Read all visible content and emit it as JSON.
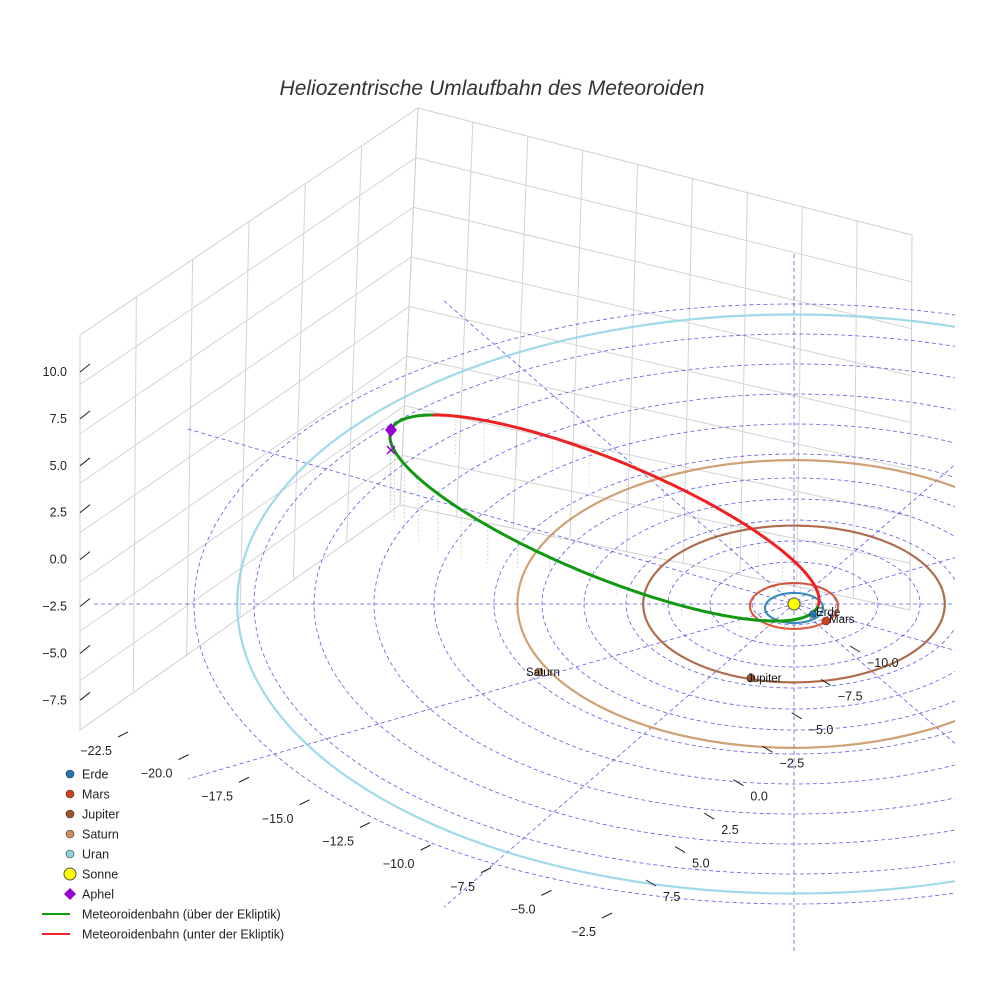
{
  "chart_data": {
    "type": "scatter",
    "title": "Heliozentrische Umlaufbahn des Meteoroiden",
    "z_ticks": [
      "10.0",
      "7.5",
      "5.0",
      "2.5",
      "0.0",
      "−2.5",
      "−5.0",
      "−7.5"
    ],
    "x_ticks": [
      "−22.5",
      "−20.0",
      "−17.5",
      "−15.0",
      "−12.5",
      "−10.0",
      "−7.5",
      "−5.0",
      "−2.5"
    ],
    "y_ticks": [
      "−10.0",
      "−7.5",
      "−5.0",
      "−2.5",
      "0.0",
      "2.5",
      "5.0",
      "7.5"
    ],
    "axis_ranges": {
      "x": [
        -23,
        0
      ],
      "y": [
        -11,
        8.5
      ],
      "z": [
        -8.5,
        11
      ]
    },
    "grid": true,
    "legend_placement": "bottom-left",
    "legend": [
      {
        "label": "Erde",
        "marker": "circle",
        "color": "#1f77b4"
      },
      {
        "label": "Mars",
        "marker": "circle",
        "color": "#d2421b"
      },
      {
        "label": "Jupiter",
        "marker": "circle",
        "color": "#a0522d"
      },
      {
        "label": "Saturn",
        "marker": "circle",
        "color": "#c8915c"
      },
      {
        "label": "Uran",
        "marker": "circle",
        "color": "#8ed3e6"
      },
      {
        "label": "Sonne",
        "marker": "big-circle",
        "color": "#ffff00"
      },
      {
        "label": "Aphel",
        "marker": "diamond",
        "color": "#9400d3"
      },
      {
        "label": "Meteoroidenbahn (über der Ekliptik)",
        "marker": "line",
        "color": "#119911"
      },
      {
        "label": "Meteoroidenbahn (unter der Ekliptik)",
        "marker": "line",
        "color": "#ee2222"
      }
    ],
    "planet_labels": [
      "Erde",
      "Mars",
      "Jupiter",
      "Saturn"
    ],
    "planet_orbit_radii_au": {
      "Erde": 1.0,
      "Mars": 1.52,
      "Jupiter": 5.2,
      "Saturn": 9.54,
      "Uran": 19.2
    },
    "meteoroid_orbit": {
      "perihelion_au": 1.0,
      "aphelion_point": [
        -23.0,
        0.0,
        7.0
      ],
      "color_above": "#119911",
      "color_below": "#ee2222"
    },
    "colors": {
      "erde": "#1f77b4",
      "mars": "#d2421b",
      "jupiter": "#a0522d",
      "saturn": "#c8915c",
      "uran": "#8ed3e6",
      "sonne": "#ffff00",
      "aphel": "#9400d3",
      "orbit_above": "#119911",
      "orbit_below": "#ee2222",
      "ecliptic_grid": "#3333dd"
    }
  }
}
